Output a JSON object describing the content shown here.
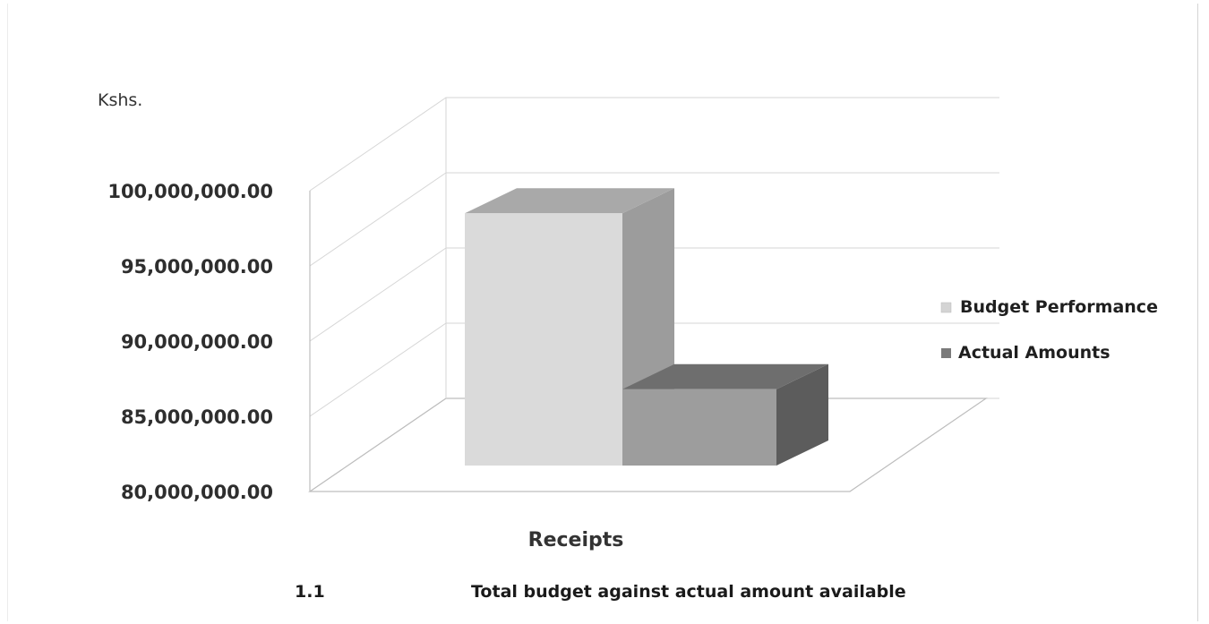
{
  "chart_data": {
    "type": "bar",
    "style": "3d-column",
    "unit_label": "Kshs.",
    "categories": [
      "Receipts"
    ],
    "series": [
      {
        "name": "Budget Performance",
        "values": [
          98500000
        ],
        "color": "#d9d9d9"
      },
      {
        "name": "Actual Amounts",
        "values": [
          86800000
        ],
        "color": "#9a9a9a"
      }
    ],
    "y_ticks": [
      "100,000,000.00",
      "95,000,000.00",
      "90,000,000.00",
      "85,000,000.00",
      "80,000,000.00"
    ],
    "ylim": [
      80000000,
      100000000
    ],
    "grid": true,
    "legend": "right"
  },
  "caption": {
    "number": "1.1",
    "text": "Total budget against actual amount available"
  }
}
